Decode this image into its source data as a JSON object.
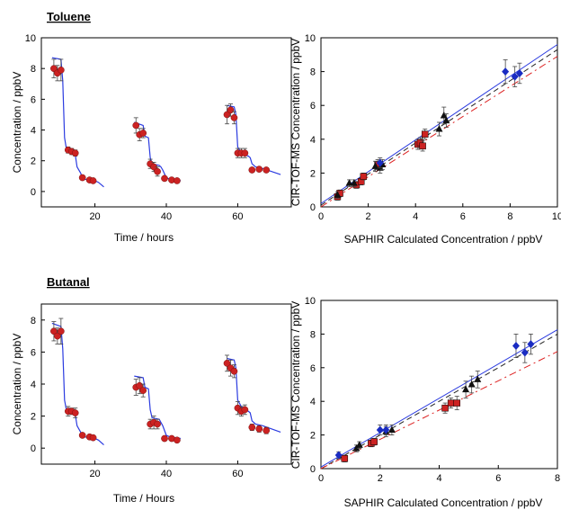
{
  "chart_data": [
    {
      "type": "scatter",
      "title": "Toluene",
      "xlabel": "Time / hours",
      "ylabel": "Concentration / ppbV",
      "xlim": [
        5,
        75
      ],
      "ylim": [
        -1,
        10
      ],
      "xticks": [
        20,
        40,
        60
      ],
      "yticks": [
        0,
        2,
        4,
        6,
        8,
        10
      ],
      "model_line": {
        "color": "#2b3be0",
        "x": [
          8,
          10.5,
          11,
          11.5,
          12,
          14,
          14.5,
          15,
          16,
          16.5,
          17,
          20,
          21,
          22.5,
          null,
          31,
          33.5,
          34,
          35,
          35.5,
          36,
          38,
          38.5,
          39,
          40,
          41,
          44,
          null,
          57,
          59,
          59.5,
          60,
          61,
          61.5,
          63,
          63.5,
          64,
          65,
          67,
          72
        ],
        "y": [
          8.7,
          8.6,
          7.2,
          3.5,
          2.8,
          2.6,
          2.4,
          1.6,
          1.2,
          0.9,
          0.8,
          0.7,
          0.6,
          0.3,
          null,
          4.5,
          4.3,
          3.6,
          3.5,
          2.2,
          1.8,
          1.7,
          1.6,
          1.4,
          0.9,
          0.8,
          0.7,
          null,
          5.6,
          5.5,
          5.0,
          2.9,
          2.5,
          2.4,
          2.3,
          2.2,
          1.8,
          1.6,
          1.5,
          1.1
        ]
      },
      "points": {
        "color": "#cc2222",
        "x": [
          8.5,
          9.5,
          10.5,
          12.5,
          13.5,
          14.5,
          16.5,
          18.5,
          19.5,
          31.5,
          32.5,
          33.5,
          35.5,
          36.5,
          37.5,
          39.5,
          41.5,
          43,
          57,
          58,
          59,
          60,
          61,
          62,
          64,
          66,
          68
        ],
        "y": [
          8.0,
          7.7,
          7.9,
          2.7,
          2.6,
          2.5,
          0.9,
          0.75,
          0.7,
          4.3,
          3.7,
          3.8,
          1.8,
          1.6,
          1.3,
          0.85,
          0.75,
          0.7,
          5.0,
          5.3,
          4.8,
          2.5,
          2.5,
          2.5,
          1.4,
          1.45,
          1.4
        ],
        "err": [
          0.6,
          0.5,
          0.7,
          0.2,
          0.2,
          0.2,
          0.15,
          0.1,
          0.1,
          0.5,
          0.4,
          0.3,
          0.3,
          0.3,
          0.3,
          0.1,
          0.1,
          0.1,
          0.6,
          0.4,
          0.4,
          0.3,
          0.3,
          0.3,
          0.15,
          0.15,
          0.15
        ]
      }
    },
    {
      "type": "scatter",
      "xlabel": "SAPHIR Calculated Concentration / ppbV",
      "ylabel": "CIR-TOF-MS Concentration / ppbV",
      "xlim": [
        0,
        10
      ],
      "ylim": [
        0,
        10
      ],
      "xticks": [
        0,
        2,
        4,
        6,
        8,
        10
      ],
      "yticks": [
        0,
        2,
        4,
        6,
        8,
        10
      ],
      "series": [
        {
          "color": "#cc2222",
          "marker": "square",
          "x": [
            0.7,
            0.8,
            1.5,
            1.7,
            1.8,
            2.4,
            4.1,
            4.2,
            4.3,
            4.4
          ],
          "y": [
            0.6,
            0.8,
            1.3,
            1.5,
            1.8,
            2.5,
            3.7,
            3.8,
            3.6,
            4.3
          ],
          "err": [
            0.2,
            0.2,
            0.2,
            0.2,
            0.2,
            0.3,
            0.3,
            0.3,
            0.3,
            0.3
          ]
        },
        {
          "color": "#111111",
          "marker": "triangle",
          "x": [
            0.7,
            1.2,
            1.4,
            2.3,
            2.5,
            2.6,
            5.0,
            5.2,
            5.3
          ],
          "y": [
            0.7,
            1.4,
            1.4,
            2.4,
            2.3,
            2.5,
            4.6,
            5.4,
            5.1
          ],
          "err": [
            0.2,
            0.2,
            0.2,
            0.3,
            0.3,
            0.3,
            0.4,
            0.5,
            0.4
          ]
        },
        {
          "color": "#1a2cc2",
          "marker": "diamond",
          "x": [
            2.5,
            7.8,
            8.2,
            8.4
          ],
          "y": [
            2.6,
            8.0,
            7.7,
            7.9
          ],
          "err": [
            0.3,
            0.7,
            0.6,
            0.6
          ]
        }
      ],
      "fits": [
        {
          "color": "#2b3be0",
          "dash": "none",
          "slope": 0.94,
          "intercept": 0.2
        },
        {
          "color": "#222222",
          "dash": "6,4",
          "slope": 0.92,
          "intercept": 0.1
        },
        {
          "color": "#dd2222",
          "dash": "8,4,2,4",
          "slope": 0.89,
          "intercept": 0.0
        }
      ]
    },
    {
      "type": "scatter",
      "title": "Butanal",
      "xlabel": "Time / Hours",
      "ylabel": "Concentration / ppbV",
      "xlim": [
        5,
        75
      ],
      "ylim": [
        -1,
        9
      ],
      "xticks": [
        20,
        40,
        60
      ],
      "yticks": [
        0,
        2,
        4,
        6,
        8
      ],
      "model_line": {
        "color": "#2b3be0",
        "x": [
          8,
          10.5,
          11,
          11.5,
          12,
          14,
          14.5,
          15,
          16,
          16.5,
          17,
          20,
          21,
          22.5,
          null,
          31,
          33.5,
          34,
          35,
          35.5,
          36,
          38,
          38.5,
          39,
          40,
          41,
          44,
          null,
          57,
          59,
          59.5,
          60,
          61,
          61.5,
          63,
          63.5,
          64,
          65,
          67,
          72
        ],
        "y": [
          7.8,
          7.6,
          6.2,
          3.0,
          2.4,
          2.3,
          2.1,
          1.4,
          1.0,
          0.8,
          0.7,
          0.6,
          0.5,
          0.2,
          null,
          4.5,
          4.4,
          3.8,
          3.7,
          2.4,
          1.9,
          1.8,
          1.6,
          1.4,
          0.8,
          0.7,
          0.6,
          null,
          5.6,
          5.5,
          5.0,
          3.0,
          2.6,
          2.5,
          2.3,
          2.2,
          1.7,
          1.5,
          1.4,
          1.0
        ]
      },
      "points": {
        "color": "#cc2222",
        "x": [
          8.5,
          9.5,
          10.5,
          12.5,
          13.5,
          14.5,
          16.5,
          18.5,
          19.5,
          31.5,
          32.5,
          33.5,
          35.5,
          36.5,
          37.5,
          39.5,
          41.5,
          43,
          57,
          58,
          59,
          60,
          61,
          62,
          64,
          66,
          68
        ],
        "y": [
          7.3,
          7.0,
          7.3,
          2.3,
          2.3,
          2.2,
          0.8,
          0.7,
          0.65,
          3.8,
          3.9,
          3.6,
          1.5,
          1.6,
          1.5,
          0.6,
          0.6,
          0.5,
          5.3,
          5.0,
          4.8,
          2.5,
          2.3,
          2.4,
          1.3,
          1.2,
          1.1
        ],
        "err": [
          0.6,
          0.5,
          0.8,
          0.3,
          0.2,
          0.3,
          0.1,
          0.1,
          0.1,
          0.5,
          0.5,
          0.4,
          0.3,
          0.4,
          0.3,
          0.15,
          0.1,
          0.1,
          0.5,
          0.5,
          0.4,
          0.4,
          0.3,
          0.3,
          0.2,
          0.2,
          0.2
        ]
      }
    },
    {
      "type": "scatter",
      "xlabel": "SAPHIR Calculated Concentration / ppbV",
      "ylabel": "CIR-TOF-MS Concentration / ppbV",
      "xlim": [
        0,
        8
      ],
      "ylim": [
        0,
        10
      ],
      "xticks": [
        0,
        2,
        4,
        6,
        8
      ],
      "yticks": [
        0,
        2,
        4,
        6,
        8,
        10
      ],
      "series": [
        {
          "color": "#cc2222",
          "marker": "square",
          "x": [
            0.8,
            1.7,
            1.8,
            4.2,
            4.4,
            4.6
          ],
          "y": [
            0.6,
            1.5,
            1.6,
            3.6,
            3.9,
            3.9
          ],
          "err": [
            0.2,
            0.2,
            0.2,
            0.3,
            0.3,
            0.4
          ]
        },
        {
          "color": "#111111",
          "marker": "triangle",
          "x": [
            1.2,
            1.3,
            2.2,
            2.4,
            4.9,
            5.1,
            5.3
          ],
          "y": [
            1.2,
            1.4,
            2.2,
            2.3,
            4.7,
            5.0,
            5.3
          ],
          "err": [
            0.2,
            0.2,
            0.3,
            0.3,
            0.5,
            0.5,
            0.5
          ]
        },
        {
          "color": "#1a2cc2",
          "marker": "diamond",
          "x": [
            0.6,
            2.0,
            2.2,
            6.6,
            6.9,
            7.1
          ],
          "y": [
            0.8,
            2.3,
            2.3,
            7.3,
            6.9,
            7.4
          ],
          "err": [
            0.2,
            0.3,
            0.3,
            0.7,
            0.6,
            0.6
          ]
        }
      ],
      "fits": [
        {
          "color": "#2b3be0",
          "dash": "none",
          "slope": 1.02,
          "intercept": 0.1
        },
        {
          "color": "#222222",
          "dash": "6,4",
          "slope": 1.0,
          "intercept": 0.0
        },
        {
          "color": "#dd2222",
          "dash": "8,4,2,4",
          "slope": 0.87,
          "intercept": 0.0
        }
      ]
    }
  ]
}
